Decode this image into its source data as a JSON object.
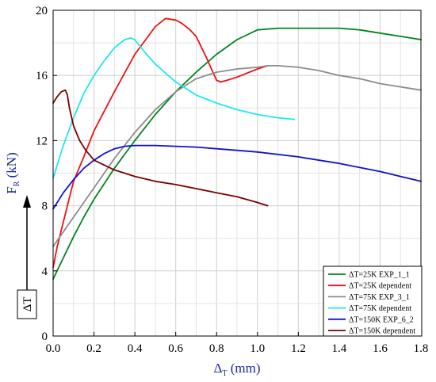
{
  "chart_data": {
    "type": "line",
    "xlabel": "Δ",
    "xlabel_sub": "T",
    "xlabel_unit": " (mm)",
    "ylabel": "F",
    "ylabel_sub": "R",
    "ylabel_unit": " (kN)",
    "xlim": [
      0,
      1.8
    ],
    "ylim": [
      0,
      20
    ],
    "x_ticks": [
      0.0,
      0.2,
      0.4,
      0.6,
      0.8,
      1.0,
      1.2,
      1.4,
      1.6,
      1.8
    ],
    "x_tick_labels": [
      "0.0",
      "0.2",
      "0.4",
      "0.6",
      "0.8",
      "1.0",
      "1.2",
      "1.4",
      "1.6",
      "1.8"
    ],
    "y_ticks": [
      0,
      4,
      8,
      12,
      16,
      20
    ],
    "y_tick_labels": [
      "0",
      "4",
      "8",
      "12",
      "16",
      "20"
    ],
    "grid": true,
    "legend_position": "bottom-right",
    "side_label": "ΔT",
    "series": [
      {
        "name": "ΔT=25K EXP_1_1",
        "color": "#00851f",
        "x": [
          0,
          0.05,
          0.1,
          0.15,
          0.2,
          0.3,
          0.4,
          0.5,
          0.6,
          0.7,
          0.8,
          0.9,
          1.0,
          1.1,
          1.2,
          1.3,
          1.4,
          1.5,
          1.6,
          1.7,
          1.8
        ],
        "y": [
          3.5,
          4.8,
          6.1,
          7.3,
          8.4,
          10.3,
          12.0,
          13.6,
          15.0,
          16.2,
          17.3,
          18.2,
          18.8,
          18.9,
          18.9,
          18.9,
          18.9,
          18.8,
          18.6,
          18.4,
          18.2
        ]
      },
      {
        "name": "ΔT=25K dependent",
        "color": "#f01010",
        "x": [
          0,
          0.02,
          0.05,
          0.08,
          0.1,
          0.13,
          0.15,
          0.2,
          0.25,
          0.3,
          0.4,
          0.5,
          0.55,
          0.6,
          0.63,
          0.67,
          0.7,
          0.75,
          0.8,
          0.82,
          0.85,
          0.9,
          1.0,
          1.05
        ],
        "y": [
          4.2,
          5.5,
          7.0,
          8.5,
          9.5,
          10.4,
          11.0,
          12.6,
          13.8,
          15.0,
          17.3,
          19.0,
          19.5,
          19.4,
          19.2,
          18.8,
          18.4,
          17.1,
          15.7,
          15.6,
          15.7,
          15.9,
          16.4,
          16.6
        ]
      },
      {
        "name": "ΔT=75K EXP_3_1",
        "color": "#8c8c8c",
        "x": [
          0,
          0.05,
          0.1,
          0.2,
          0.3,
          0.4,
          0.5,
          0.6,
          0.7,
          0.8,
          0.9,
          1.0,
          1.05,
          1.1,
          1.2,
          1.3,
          1.4,
          1.5,
          1.6,
          1.7,
          1.8
        ],
        "y": [
          5.5,
          6.4,
          7.3,
          9.1,
          10.9,
          12.5,
          13.9,
          15.0,
          15.8,
          16.2,
          16.4,
          16.5,
          16.6,
          16.6,
          16.5,
          16.3,
          16.0,
          15.8,
          15.5,
          15.3,
          15.1
        ]
      },
      {
        "name": "ΔT=75K dependent",
        "color": "#1ee8f0",
        "x": [
          0,
          0.05,
          0.1,
          0.15,
          0.2,
          0.25,
          0.3,
          0.35,
          0.38,
          0.4,
          0.45,
          0.5,
          0.6,
          0.7,
          0.8,
          0.9,
          1.0,
          1.1,
          1.18
        ],
        "y": [
          9.7,
          11.7,
          13.4,
          14.9,
          16.0,
          16.9,
          17.7,
          18.2,
          18.3,
          18.2,
          17.4,
          16.7,
          15.6,
          14.8,
          14.3,
          13.9,
          13.6,
          13.4,
          13.3
        ]
      },
      {
        "name": "ΔT=150K EXP_6_2",
        "color": "#1010d8",
        "x": [
          0,
          0.05,
          0.1,
          0.15,
          0.2,
          0.25,
          0.3,
          0.35,
          0.4,
          0.5,
          0.6,
          0.7,
          0.8,
          0.9,
          1.0,
          1.2,
          1.4,
          1.6,
          1.8
        ],
        "y": [
          7.8,
          8.8,
          9.6,
          10.3,
          10.8,
          11.2,
          11.5,
          11.65,
          11.7,
          11.7,
          11.65,
          11.6,
          11.5,
          11.4,
          11.3,
          11.0,
          10.6,
          10.1,
          9.5
        ]
      },
      {
        "name": "ΔT=150K dependent",
        "color": "#7a0000",
        "x": [
          0,
          0.02,
          0.04,
          0.06,
          0.07,
          0.08,
          0.1,
          0.13,
          0.16,
          0.2,
          0.3,
          0.4,
          0.5,
          0.6,
          0.7,
          0.8,
          0.9,
          1.0,
          1.05
        ],
        "y": [
          14.3,
          14.7,
          15.0,
          15.1,
          14.8,
          14.0,
          12.9,
          12.0,
          11.4,
          10.8,
          10.2,
          9.8,
          9.5,
          9.3,
          9.05,
          8.8,
          8.55,
          8.2,
          8.0
        ]
      }
    ]
  }
}
